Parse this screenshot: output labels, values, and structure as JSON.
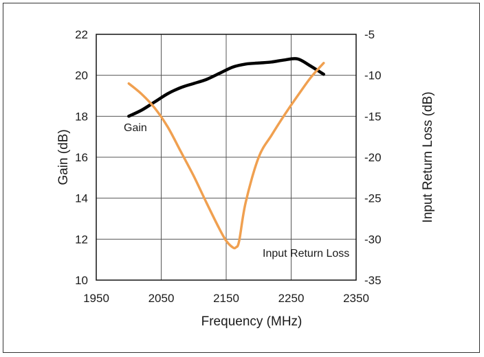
{
  "chart_data": {
    "type": "line",
    "xlabel": "Frequency (MHz)",
    "ylabel": "Gain (dB)",
    "y2label": "Input Return Loss (dB)",
    "xlim": [
      1950,
      2350
    ],
    "ylim": [
      10,
      22
    ],
    "y2lim": [
      -35,
      -5
    ],
    "x_ticks": [
      "1950",
      "2050",
      "2150",
      "2250",
      "2350"
    ],
    "y_ticks": [
      "10",
      "12",
      "14",
      "16",
      "18",
      "20",
      "22"
    ],
    "y2_ticks": [
      "-35",
      "-30",
      "-25",
      "-20",
      "-15",
      "-10",
      "-5"
    ],
    "grid": true,
    "series": [
      {
        "name": "Gain",
        "axis": "left",
        "color": "#000000",
        "x": [
          2000,
          2020,
          2040,
          2060,
          2080,
          2100,
          2120,
          2140,
          2160,
          2180,
          2200,
          2220,
          2240,
          2260,
          2280,
          2300
        ],
        "values": [
          18.0,
          18.3,
          18.7,
          19.1,
          19.4,
          19.6,
          19.8,
          20.1,
          20.4,
          20.55,
          20.6,
          20.65,
          20.75,
          20.8,
          20.45,
          20.05
        ]
      },
      {
        "name": "Input Return Loss",
        "axis": "right",
        "color": "#f0a050",
        "x": [
          2000,
          2020,
          2040,
          2060,
          2080,
          2100,
          2120,
          2140,
          2150,
          2160,
          2165,
          2170,
          2180,
          2200,
          2220,
          2240,
          2260,
          2280,
          2300
        ],
        "values": [
          -11,
          -12.3,
          -14.0,
          -16.3,
          -19.3,
          -22.3,
          -25.6,
          -28.8,
          -30.2,
          -31.0,
          -31.0,
          -30.2,
          -25.5,
          -20.0,
          -17.3,
          -14.8,
          -12.5,
          -10.3,
          -8.5
        ]
      }
    ],
    "annotations": [
      {
        "text": "Gain",
        "series": "Gain"
      },
      {
        "text": "Input Return Loss",
        "series": "Input Return Loss"
      }
    ]
  }
}
